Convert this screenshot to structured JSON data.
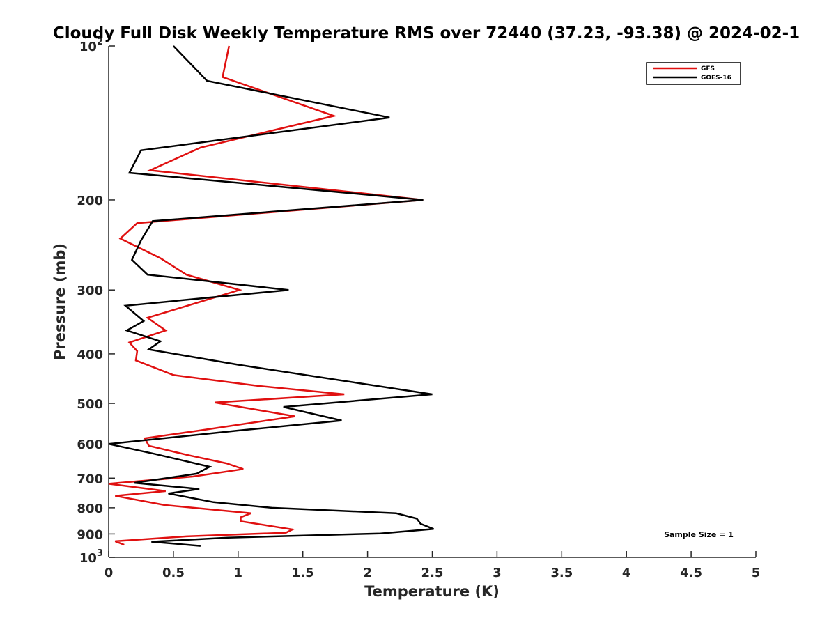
{
  "chart_data": {
    "type": "line",
    "title": "Cloudy Full Disk Weekly Temperature RMS over 72440 (37.23, -93.38) @ 2024-02-1",
    "xlabel": "Temperature (K)",
    "ylabel": "Pressure (mb)",
    "xlim": [
      0,
      5
    ],
    "ylim": [
      100,
      1000
    ],
    "y_scale": "log",
    "y_reversed": true,
    "grid": false,
    "legend_position": "top-right",
    "x_ticks": [
      "0",
      "0.5",
      "1",
      "1.5",
      "2",
      "2.5",
      "3",
      "3.5",
      "4",
      "4.5",
      "5"
    ],
    "x_tick_values": [
      0,
      0.5,
      1,
      1.5,
      2,
      2.5,
      3,
      3.5,
      4,
      4.5,
      5
    ],
    "y_ticks": [
      {
        "value": 100,
        "base": "10",
        "exp": "2"
      },
      {
        "value": 200,
        "label": "200"
      },
      {
        "value": 300,
        "label": "300"
      },
      {
        "value": 400,
        "label": "400"
      },
      {
        "value": 500,
        "label": "500"
      },
      {
        "value": 600,
        "label": "600"
      },
      {
        "value": 700,
        "label": "700"
      },
      {
        "value": 800,
        "label": "800"
      },
      {
        "value": 900,
        "label": "900"
      },
      {
        "value": 1000,
        "base": "10",
        "exp": "3"
      }
    ],
    "annotation": "Sample Size = 1",
    "series": [
      {
        "name": "GFS",
        "color": "#e01010",
        "points": [
          [
            0.93,
            100
          ],
          [
            0.88,
            115
          ],
          [
            1.74,
            137
          ],
          [
            0.71,
            158
          ],
          [
            0.32,
            175
          ],
          [
            2.43,
            200
          ],
          [
            0.22,
            222
          ],
          [
            0.09,
            238
          ],
          [
            0.4,
            260
          ],
          [
            0.6,
            280
          ],
          [
            1.01,
            300
          ],
          [
            0.3,
            340
          ],
          [
            0.44,
            360
          ],
          [
            0.16,
            380
          ],
          [
            0.22,
            395
          ],
          [
            0.21,
            412
          ],
          [
            0.5,
            440
          ],
          [
            1.15,
            462
          ],
          [
            1.82,
            480
          ],
          [
            0.82,
            498
          ],
          [
            1.44,
            530
          ],
          [
            0.7,
            565
          ],
          [
            0.28,
            585
          ],
          [
            0.31,
            605
          ],
          [
            0.6,
            630
          ],
          [
            0.91,
            655
          ],
          [
            1.04,
            672
          ],
          [
            0.65,
            695
          ],
          [
            0.0,
            718
          ],
          [
            0.44,
            742
          ],
          [
            0.05,
            758
          ],
          [
            0.43,
            790
          ],
          [
            1.1,
            820
          ],
          [
            1.02,
            835
          ],
          [
            1.02,
            850
          ],
          [
            1.42,
            882
          ],
          [
            1.37,
            895
          ],
          [
            0.6,
            910
          ],
          [
            0.05,
            930
          ],
          [
            0.12,
            945
          ]
        ]
      },
      {
        "name": "GOES-16",
        "color": "#000000",
        "points": [
          [
            0.5,
            100
          ],
          [
            0.76,
            117
          ],
          [
            2.17,
            138
          ],
          [
            0.25,
            160
          ],
          [
            0.16,
            177
          ],
          [
            2.43,
            200
          ],
          [
            0.34,
            220
          ],
          [
            0.25,
            240
          ],
          [
            0.18,
            262
          ],
          [
            0.3,
            280
          ],
          [
            1.39,
            300
          ],
          [
            0.13,
            322
          ],
          [
            0.27,
            345
          ],
          [
            0.14,
            360
          ],
          [
            0.4,
            378
          ],
          [
            0.31,
            392
          ],
          [
            1.0,
            420
          ],
          [
            2.5,
            480
          ],
          [
            1.35,
            508
          ],
          [
            1.8,
            540
          ],
          [
            1.0,
            565
          ],
          [
            0.0,
            600
          ],
          [
            0.36,
            628
          ],
          [
            0.78,
            665
          ],
          [
            0.68,
            686
          ],
          [
            0.2,
            715
          ],
          [
            0.7,
            735
          ],
          [
            0.46,
            750
          ],
          [
            0.81,
            780
          ],
          [
            1.26,
            800
          ],
          [
            2.22,
            820
          ],
          [
            2.38,
            840
          ],
          [
            2.41,
            860
          ],
          [
            2.51,
            880
          ],
          [
            2.1,
            898
          ],
          [
            0.92,
            915
          ],
          [
            0.33,
            932
          ],
          [
            0.71,
            950
          ]
        ]
      }
    ]
  }
}
